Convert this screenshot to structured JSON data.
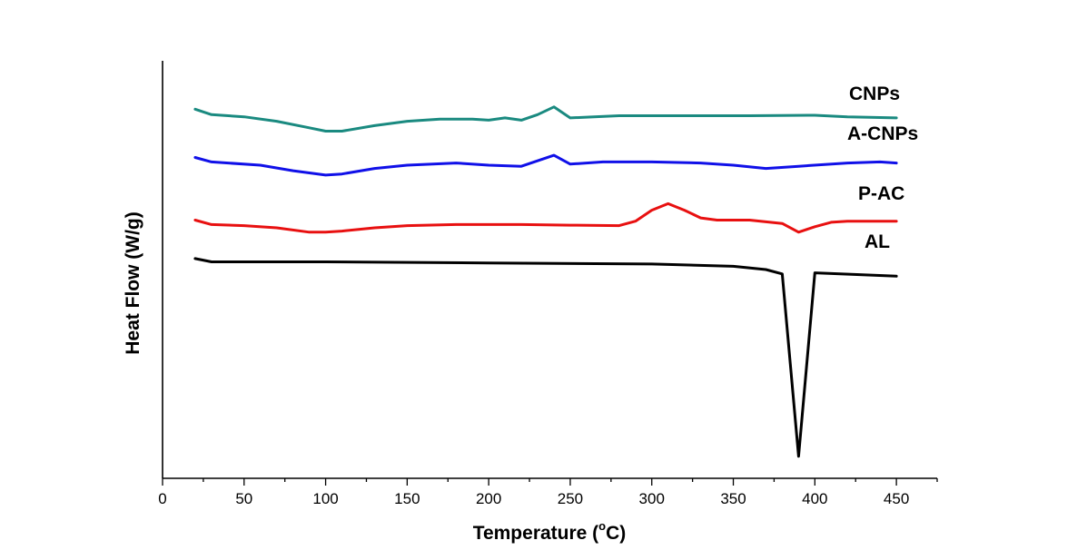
{
  "chart_data": {
    "type": "line",
    "xlabel_main": "Temperature (",
    "xlabel_sup": "o",
    "xlabel_end": "C)",
    "ylabel": "Heat Flow (W/g)",
    "xlim": [
      0,
      475
    ],
    "ylim": [
      -1.0,
      0.9
    ],
    "xticks": [
      0,
      50,
      100,
      150,
      200,
      250,
      300,
      350,
      400,
      450
    ],
    "yticks_shown": false,
    "grid": false,
    "series": [
      {
        "name": "CNPs",
        "color": "#1a8a80",
        "x": [
          20,
          30,
          50,
          70,
          90,
          100,
          110,
          130,
          150,
          170,
          190,
          200,
          210,
          220,
          230,
          240,
          250,
          280,
          320,
          360,
          400,
          420,
          450
        ],
        "y": [
          0.68,
          0.655,
          0.645,
          0.625,
          0.595,
          0.58,
          0.58,
          0.605,
          0.625,
          0.635,
          0.635,
          0.63,
          0.64,
          0.63,
          0.655,
          0.69,
          0.64,
          0.65,
          0.65,
          0.65,
          0.652,
          0.645,
          0.64
        ]
      },
      {
        "name": "A-CNPs",
        "color": "#1010e8",
        "x": [
          20,
          30,
          60,
          80,
          100,
          110,
          130,
          150,
          180,
          200,
          220,
          240,
          250,
          270,
          300,
          330,
          350,
          370,
          390,
          420,
          440,
          450
        ],
        "y": [
          0.46,
          0.44,
          0.425,
          0.4,
          0.38,
          0.385,
          0.41,
          0.425,
          0.435,
          0.425,
          0.42,
          0.47,
          0.43,
          0.44,
          0.44,
          0.435,
          0.425,
          0.41,
          0.42,
          0.435,
          0.44,
          0.435
        ]
      },
      {
        "name": "P-AC",
        "color": "#e81010",
        "x": [
          20,
          30,
          50,
          70,
          90,
          100,
          110,
          130,
          150,
          180,
          220,
          250,
          280,
          290,
          300,
          310,
          320,
          330,
          340,
          360,
          380,
          390,
          400,
          410,
          420,
          450
        ],
        "y": [
          0.175,
          0.155,
          0.15,
          0.14,
          0.12,
          0.12,
          0.125,
          0.14,
          0.15,
          0.155,
          0.155,
          0.152,
          0.15,
          0.17,
          0.22,
          0.25,
          0.22,
          0.185,
          0.175,
          0.175,
          0.16,
          0.12,
          0.145,
          0.165,
          0.17,
          0.17
        ]
      },
      {
        "name": "AL",
        "color": "#000000",
        "x": [
          20,
          30,
          100,
          200,
          300,
          350,
          370,
          380,
          390,
          400,
          450
        ],
        "y": [
          0.0,
          -0.015,
          -0.015,
          -0.02,
          -0.025,
          -0.035,
          -0.05,
          -0.07,
          -0.9,
          -0.065,
          -0.08
        ]
      }
    ]
  }
}
